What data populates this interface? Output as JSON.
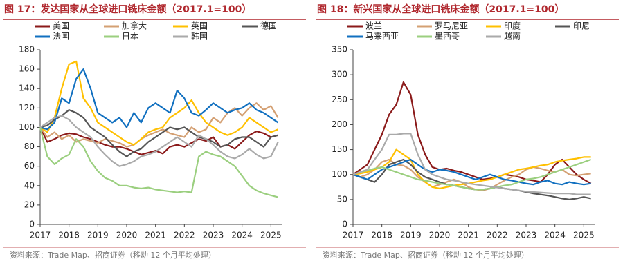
{
  "chart_data": [
    {
      "type": "line",
      "title": "图 17：发达国家从全球进口铣床金额（2017.1=100）",
      "source": "资料来源：Trade Map、招商证券（移动 12 个月平均处理）",
      "x": [
        2017,
        2017.25,
        2017.5,
        2017.75,
        2018,
        2018.25,
        2018.5,
        2018.75,
        2019,
        2019.25,
        2019.5,
        2019.75,
        2020,
        2020.25,
        2020.5,
        2020.75,
        2021,
        2021.25,
        2021.5,
        2021.75,
        2022,
        2022.25,
        2022.5,
        2022.75,
        2023,
        2023.25,
        2023.5,
        2023.75,
        2024,
        2024.25,
        2024.5,
        2024.75,
        2025,
        2025.25
      ],
      "xlim": [
        2017,
        2025.4
      ],
      "xticks": [
        2017,
        2018,
        2019,
        2020,
        2021,
        2022,
        2023,
        2024,
        2025
      ],
      "ylim": [
        0,
        180
      ],
      "yticks": [
        0,
        20,
        40,
        60,
        80,
        100,
        120,
        140,
        160,
        180
      ],
      "series": [
        {
          "name": "美国",
          "color": "#8b1a1a",
          "values": [
            100,
            85,
            88,
            92,
            94,
            93,
            90,
            88,
            85,
            82,
            80,
            80,
            78,
            75,
            72,
            74,
            76,
            73,
            80,
            82,
            80,
            84,
            88,
            86,
            90,
            80,
            82,
            78,
            85,
            92,
            96,
            94,
            90,
            92
          ]
        },
        {
          "name": "加拿大",
          "color": "#d4a073",
          "values": [
            100,
            90,
            95,
            88,
            92,
            85,
            88,
            86,
            84,
            88,
            86,
            84,
            80,
            82,
            88,
            92,
            95,
            98,
            94,
            92,
            90,
            100,
            95,
            98,
            110,
            105,
            115,
            120,
            112,
            120,
            125,
            118,
            122,
            110
          ]
        },
        {
          "name": "英国",
          "color": "#ffc000",
          "values": [
            100,
            95,
            110,
            140,
            165,
            168,
            130,
            120,
            105,
            100,
            95,
            90,
            85,
            82,
            88,
            95,
            98,
            100,
            110,
            115,
            120,
            128,
            115,
            105,
            100,
            95,
            92,
            95,
            100,
            110,
            105,
            100,
            95,
            98
          ]
        },
        {
          "name": "德国",
          "color": "#555555",
          "values": [
            100,
            102,
            108,
            112,
            118,
            115,
            110,
            100,
            95,
            90,
            82,
            75,
            70,
            75,
            78,
            85,
            90,
            95,
            100,
            98,
            100,
            95,
            90,
            88,
            85,
            80,
            82,
            88,
            90,
            90,
            85,
            80,
            90,
            92
          ]
        },
        {
          "name": "法国",
          "color": "#1170c0",
          "values": [
            100,
            98,
            105,
            130,
            125,
            150,
            160,
            140,
            115,
            110,
            105,
            110,
            100,
            115,
            105,
            120,
            125,
            120,
            115,
            138,
            130,
            115,
            112,
            118,
            125,
            120,
            115,
            118,
            120,
            125,
            118,
            115,
            110,
            105
          ]
        },
        {
          "name": "日本",
          "color": "#9bcf7f",
          "values": [
            100,
            70,
            62,
            68,
            72,
            88,
            80,
            65,
            55,
            48,
            45,
            40,
            40,
            38,
            37,
            38,
            36,
            35,
            34,
            33,
            34,
            33,
            70,
            75,
            72,
            70,
            65,
            60,
            50,
            40,
            35,
            32,
            30,
            28
          ]
        },
        {
          "name": "韩国",
          "color": "#aaaaaa",
          "values": [
            100,
            105,
            110,
            112,
            108,
            100,
            95,
            90,
            80,
            72,
            65,
            60,
            62,
            65,
            70,
            72,
            75,
            80,
            85,
            90,
            85,
            80,
            92,
            88,
            82,
            75,
            70,
            68,
            72,
            78,
            72,
            68,
            70,
            85
          ]
        }
      ]
    },
    {
      "type": "line",
      "title": "图 18：新兴国家从全球进口铣床金额（2017.1=100）",
      "source": "资料来源：Trade Map、招商证券（移动 12 个月平均处理）",
      "x": [
        2017,
        2017.25,
        2017.5,
        2017.75,
        2018,
        2018.25,
        2018.5,
        2018.75,
        2019,
        2019.25,
        2019.5,
        2019.75,
        2020,
        2020.25,
        2020.5,
        2020.75,
        2021,
        2021.25,
        2021.5,
        2021.75,
        2022,
        2022.25,
        2022.5,
        2022.75,
        2023,
        2023.25,
        2023.5,
        2023.75,
        2024,
        2024.25,
        2024.5,
        2024.75,
        2025,
        2025.25
      ],
      "xlim": [
        2017,
        2025.4
      ],
      "xticks": [
        2017,
        2018,
        2019,
        2020,
        2021,
        2022,
        2023,
        2024,
        2025
      ],
      "ylim": [
        0,
        350
      ],
      "yticks": [
        0,
        50,
        100,
        150,
        200,
        250,
        300,
        350
      ],
      "series": [
        {
          "name": "波兰",
          "color": "#8b1a1a",
          "values": [
            100,
            110,
            120,
            150,
            180,
            220,
            240,
            285,
            260,
            180,
            140,
            115,
            110,
            112,
            108,
            105,
            100,
            95,
            90,
            92,
            95,
            100,
            98,
            95,
            90,
            88,
            85,
            100,
            120,
            130,
            115,
            100,
            90,
            82
          ]
        },
        {
          "name": "罗马尼亚",
          "color": "#d4a073",
          "values": [
            100,
            95,
            100,
            110,
            125,
            130,
            120,
            118,
            110,
            95,
            85,
            75,
            80,
            85,
            90,
            85,
            75,
            70,
            68,
            72,
            80,
            88,
            95,
            100,
            110,
            115,
            112,
            108,
            105,
            110,
            100,
            98,
            100,
            102
          ]
        },
        {
          "name": "印度",
          "color": "#ffc000",
          "values": [
            100,
            102,
            105,
            110,
            115,
            125,
            150,
            140,
            130,
            100,
            85,
            75,
            72,
            75,
            78,
            80,
            82,
            85,
            88,
            90,
            95,
            100,
            105,
            110,
            112,
            115,
            118,
            120,
            125,
            128,
            130,
            132,
            135,
            135
          ]
        },
        {
          "name": "印尼",
          "color": "#555555",
          "values": [
            100,
            95,
            90,
            85,
            100,
            120,
            125,
            130,
            120,
            105,
            95,
            90,
            85,
            80,
            78,
            75,
            72,
            70,
            70,
            72,
            75,
            72,
            70,
            68,
            65,
            62,
            60,
            58,
            55,
            52,
            50,
            52,
            55,
            52
          ]
        },
        {
          "name": "马来西亚",
          "color": "#1170c0",
          "values": [
            100,
            95,
            90,
            100,
            110,
            115,
            120,
            125,
            130,
            120,
            110,
            105,
            110,
            108,
            105,
            100,
            95,
            90,
            95,
            100,
            95,
            90,
            88,
            85,
            82,
            80,
            85,
            88,
            82,
            80,
            85,
            82,
            80,
            82
          ]
        },
        {
          "name": "墨西哥",
          "color": "#9bcf7f",
          "values": [
            100,
            105,
            108,
            112,
            115,
            110,
            105,
            100,
            95,
            90,
            88,
            85,
            82,
            80,
            78,
            75,
            72,
            70,
            70,
            72,
            75,
            78,
            80,
            85,
            90,
            92,
            95,
            100,
            105,
            110,
            115,
            120,
            125,
            130
          ]
        },
        {
          "name": "越南",
          "color": "#aaaaaa",
          "values": [
            100,
            105,
            110,
            130,
            150,
            180,
            180,
            182,
            182,
            140,
            110,
            100,
            95,
            90,
            88,
            85,
            82,
            80,
            78,
            76,
            74,
            72,
            70,
            68,
            66,
            65,
            64,
            63,
            62,
            62,
            62,
            60,
            60,
            60
          ]
        }
      ]
    }
  ]
}
